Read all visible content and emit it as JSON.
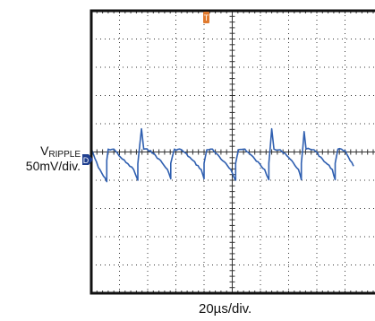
{
  "labels": {
    "signal_main": "V",
    "signal_sub": "RIPPLE",
    "vertical_scale": "50mV/div.",
    "horizontal_scale": "20µs/div."
  },
  "markers": {
    "trigger": "T",
    "channel": "D"
  },
  "colors": {
    "trace": "#2f5fb0",
    "frame": "#111111",
    "grid": "#333333",
    "trigger": "#e07a2e",
    "channel_marker": "#1f3f8f"
  },
  "chart_data": {
    "type": "line",
    "title": "",
    "xlabel": "20µs/div.",
    "ylabel": "VRIPPLE 50mV/div.",
    "grid": true,
    "xlim": [
      0,
      9.3
    ],
    "ylim": [
      -4,
      4
    ],
    "series": [
      {
        "values": [
          [
            0.0,
            0.12
          ],
          [
            0.25,
            -0.55
          ],
          [
            0.55,
            -1.05
          ],
          [
            0.55,
            -0.3
          ],
          [
            0.6,
            0.1
          ],
          [
            0.8,
            0.1
          ],
          [
            1.1,
            -0.25
          ],
          [
            1.5,
            -0.62
          ],
          [
            1.65,
            -1.0
          ],
          [
            1.65,
            -0.42
          ],
          [
            1.78,
            0.82
          ],
          [
            1.86,
            0.1
          ],
          [
            2.1,
            0.05
          ],
          [
            2.4,
            -0.25
          ],
          [
            2.7,
            -0.62
          ],
          [
            2.82,
            -0.95
          ],
          [
            2.82,
            -0.4
          ],
          [
            2.95,
            0.1
          ],
          [
            3.2,
            0.08
          ],
          [
            3.55,
            -0.25
          ],
          [
            3.9,
            -0.62
          ],
          [
            4.0,
            -0.95
          ],
          [
            4.0,
            -0.4
          ],
          [
            4.1,
            0.08
          ],
          [
            4.3,
            0.1
          ],
          [
            4.6,
            -0.25
          ],
          [
            4.95,
            -0.62
          ],
          [
            5.12,
            -1.0
          ],
          [
            5.12,
            -0.4
          ],
          [
            5.22,
            0.08
          ],
          [
            5.45,
            0.1
          ],
          [
            5.8,
            -0.25
          ],
          [
            6.15,
            -0.62
          ],
          [
            6.3,
            -0.98
          ],
          [
            6.3,
            -0.4
          ],
          [
            6.4,
            0.82
          ],
          [
            6.48,
            0.1
          ],
          [
            6.7,
            0.08
          ],
          [
            7.05,
            -0.25
          ],
          [
            7.35,
            -0.62
          ],
          [
            7.45,
            -0.98
          ],
          [
            7.45,
            -0.4
          ],
          [
            7.55,
            0.72
          ],
          [
            7.62,
            0.1
          ],
          [
            7.9,
            0.08
          ],
          [
            8.2,
            -0.25
          ],
          [
            8.55,
            -0.62
          ],
          [
            8.65,
            -0.98
          ],
          [
            8.65,
            -0.4
          ],
          [
            8.75,
            0.1
          ],
          [
            9.0,
            0.05
          ],
          [
            9.3,
            -0.5
          ]
        ]
      }
    ]
  }
}
